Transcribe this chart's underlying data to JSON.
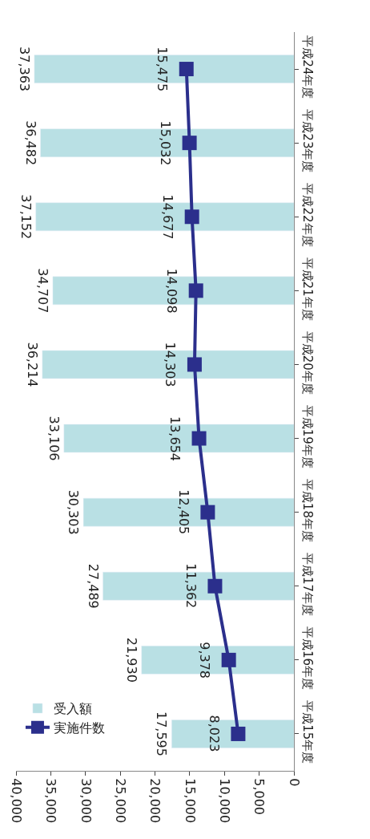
{
  "chart_data": {
    "type": "bar",
    "orientation": "horizontal",
    "categories": [
      "平成24年度",
      "平成23年度",
      "平成22年度",
      "平成21年度",
      "平成20年度",
      "平成19年度",
      "平成18年度",
      "平成17年度",
      "平成16年度",
      "平成15年度"
    ],
    "series": [
      {
        "name": "受入額",
        "color": "#b9e0e4",
        "values": [
          37363,
          36482,
          37152,
          34707,
          36214,
          33106,
          30303,
          27489,
          21930,
          17595
        ],
        "value_labels": [
          "37,363",
          "36,482",
          "37,152",
          "34,707",
          "36,214",
          "33,106",
          "30,303",
          "27,489",
          "21,930",
          "17,595"
        ]
      },
      {
        "name": "実施件数",
        "type": "line",
        "color": "#2b2f8c",
        "marker": "square",
        "line_style": "solid",
        "values": [
          15475,
          15032,
          14677,
          14098,
          14303,
          13654,
          12405,
          11362,
          9378,
          8023
        ],
        "value_labels": [
          "15,475",
          "15,032",
          "14,677",
          "14,098",
          "14,303",
          "13,654",
          "12,405",
          "11,362",
          "9,378",
          "8,023"
        ]
      }
    ],
    "xlim": [
      40000,
      0
    ],
    "xticks": [
      {
        "value": 40000,
        "label": "40,000"
      },
      {
        "value": 35000,
        "label": "35,000"
      },
      {
        "value": 30000,
        "label": "30,000"
      },
      {
        "value": 25000,
        "label": "25,000"
      },
      {
        "value": 20000,
        "label": "20,000"
      },
      {
        "value": 15000,
        "label": "15,000"
      },
      {
        "value": 10000,
        "label": "10,000"
      },
      {
        "value": 5000,
        "label": "5,000"
      },
      0
    ],
    "grid": false,
    "legend": "bottom left"
  }
}
